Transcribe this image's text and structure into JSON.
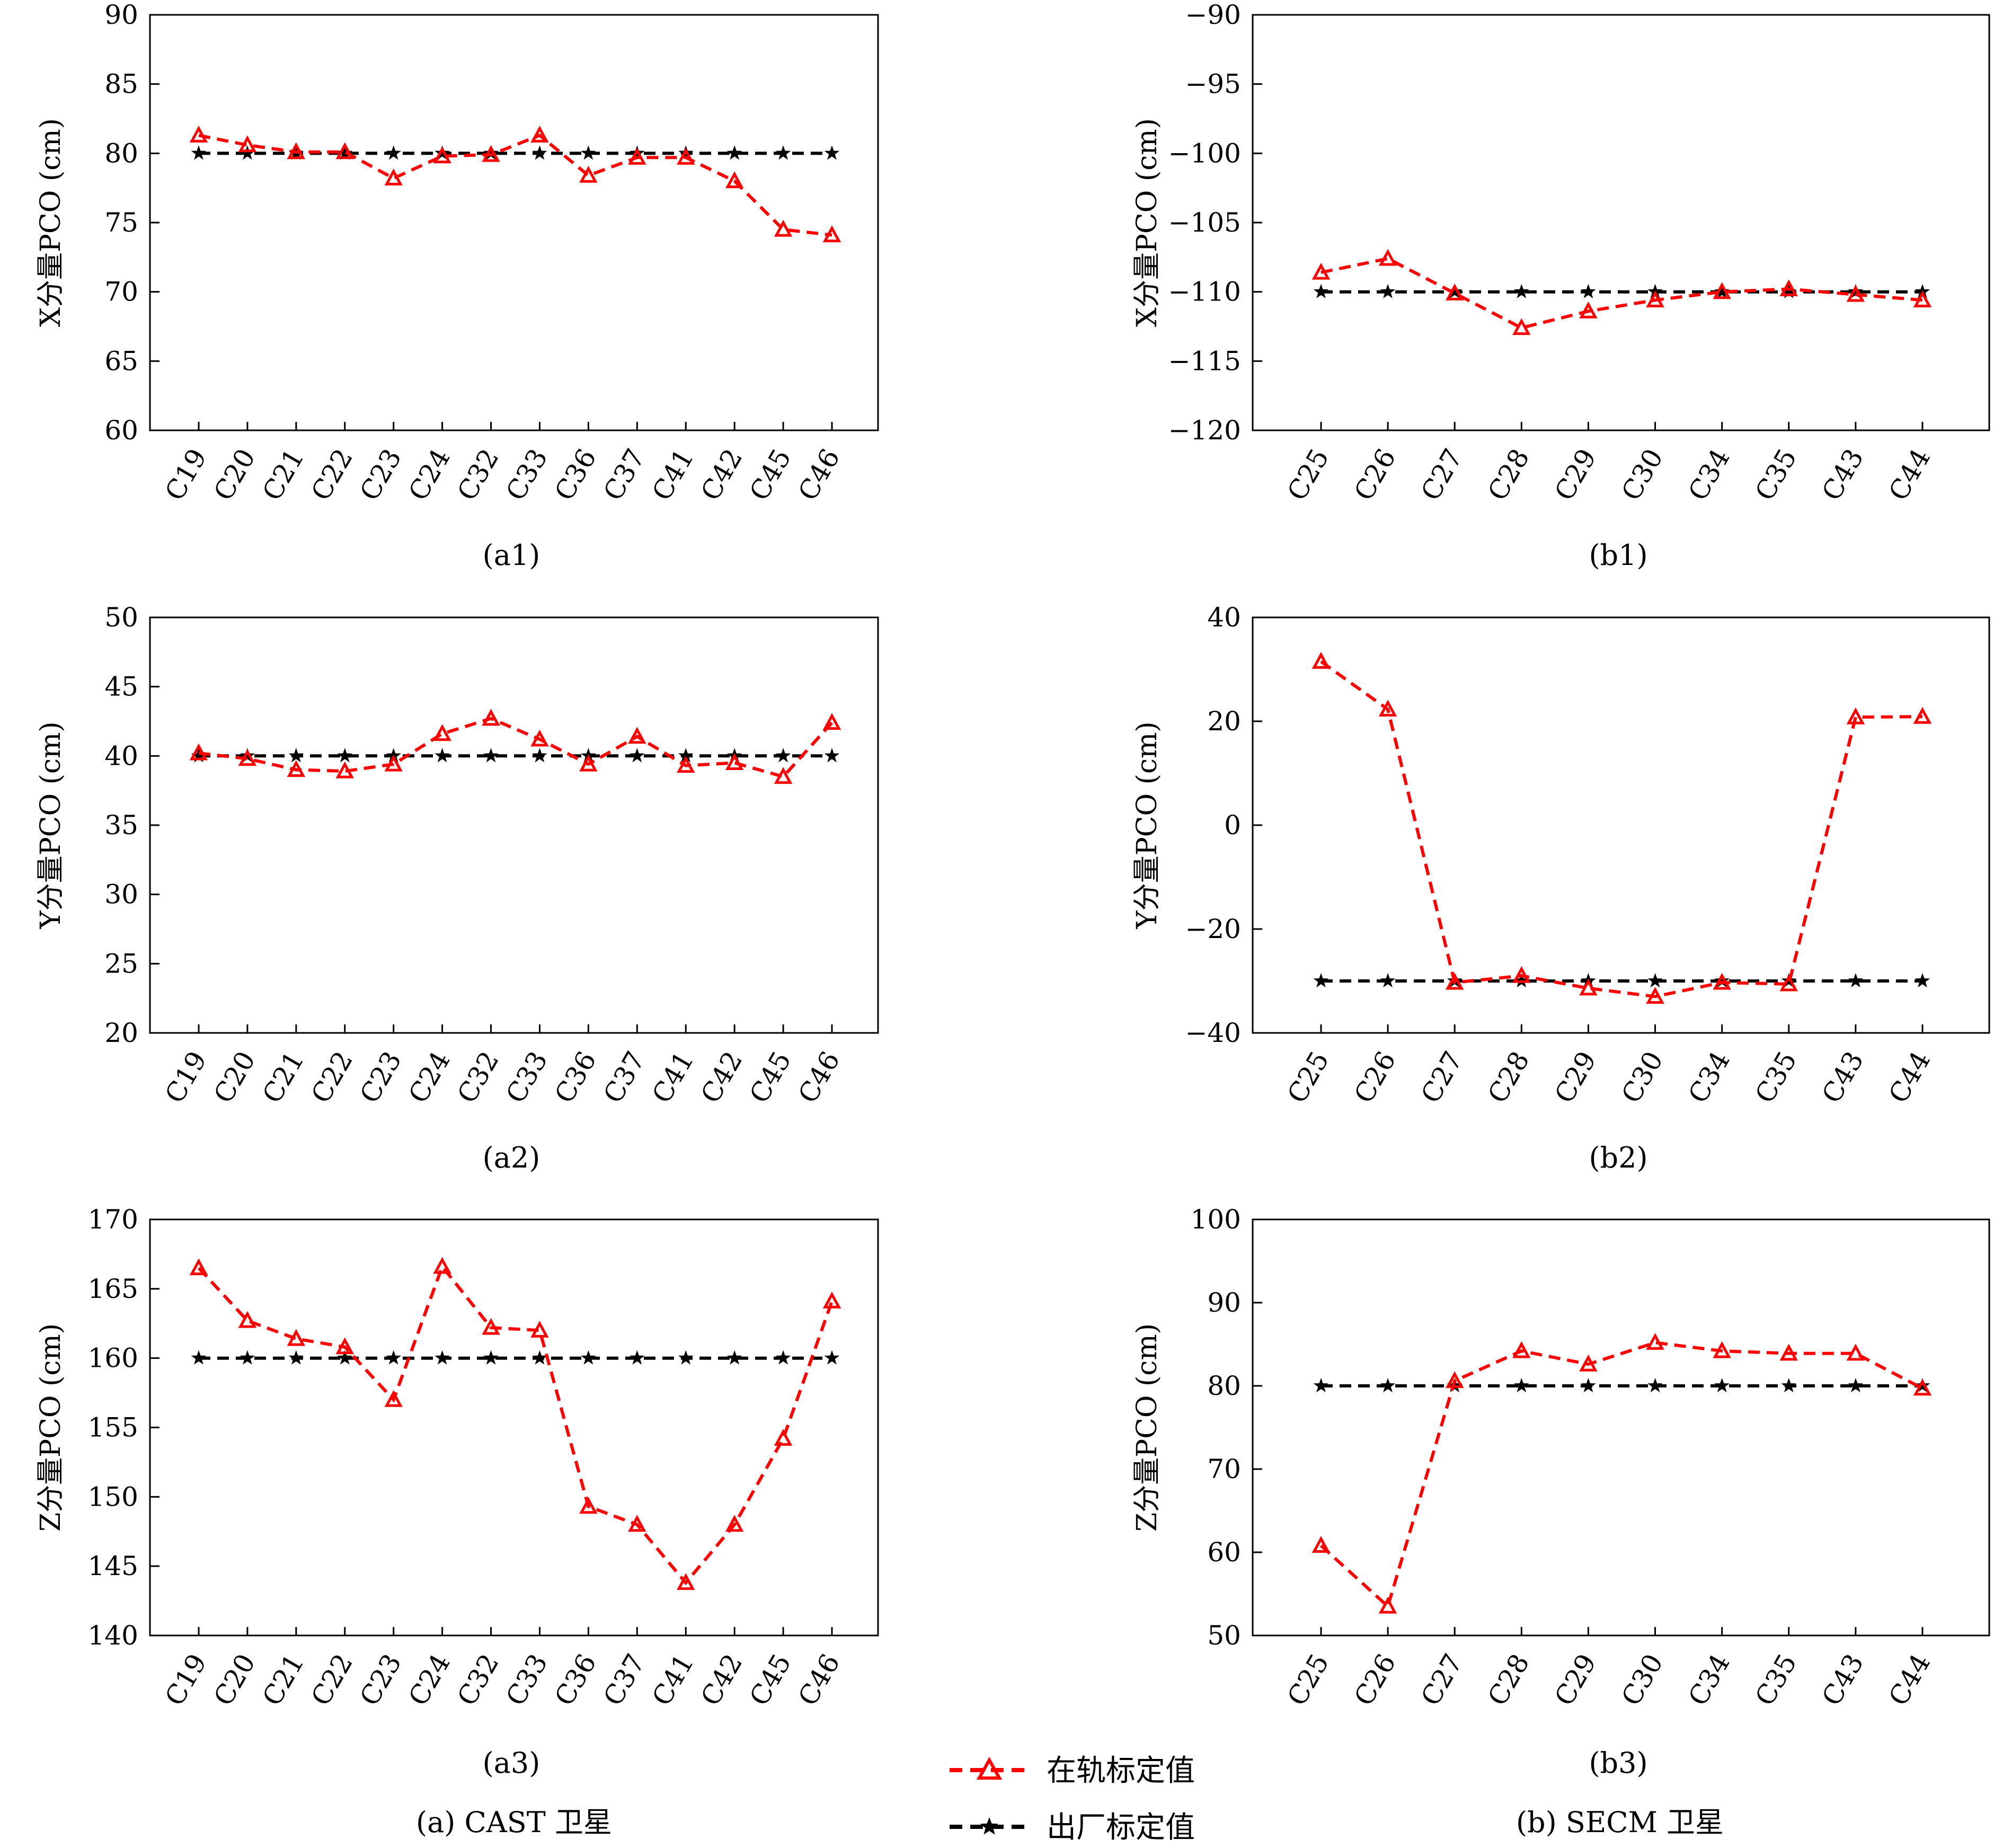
{
  "chart_data": [
    {
      "id": "a1",
      "type": "line",
      "caption": "(a1)",
      "ylabel": "X分量PCO (cm)",
      "categories": [
        "C19",
        "C20",
        "C21",
        "C22",
        "C23",
        "C24",
        "C32",
        "C33",
        "C36",
        "C37",
        "C41",
        "C42",
        "C45",
        "C46"
      ],
      "ylim": [
        60,
        90
      ],
      "yticks": [
        60,
        65,
        70,
        75,
        80,
        85,
        90
      ],
      "series": [
        {
          "name": "在轨标定值",
          "color": "#ff0000",
          "marker": "triangle",
          "values": [
            81.3,
            80.6,
            80.1,
            80.1,
            78.2,
            79.8,
            79.9,
            81.3,
            78.4,
            79.7,
            79.7,
            78.0,
            74.5,
            74.1
          ]
        },
        {
          "name": "出厂标定值",
          "color": "#000000",
          "marker": "star",
          "values": [
            80,
            80,
            80,
            80,
            80,
            80,
            80,
            80,
            80,
            80,
            80,
            80,
            80,
            80
          ]
        }
      ]
    },
    {
      "id": "b1",
      "type": "line",
      "caption": "(b1)",
      "ylabel": "X分量PCO (cm)",
      "categories": [
        "C25",
        "C26",
        "C27",
        "C28",
        "C29",
        "C30",
        "C34",
        "C35",
        "C43",
        "C44"
      ],
      "ylim": [
        -120,
        -90
      ],
      "yticks": [
        -120,
        -115,
        -110,
        -105,
        -100,
        -95,
        -90
      ],
      "series": [
        {
          "name": "在轨标定值",
          "color": "#ff0000",
          "marker": "triangle",
          "values": [
            -108.6,
            -107.6,
            -110.1,
            -112.6,
            -111.4,
            -110.6,
            -110.0,
            -109.8,
            -110.2,
            -110.6
          ]
        },
        {
          "name": "出厂标定值",
          "color": "#000000",
          "marker": "star",
          "values": [
            -110,
            -110,
            -110,
            -110,
            -110,
            -110,
            -110,
            -110,
            -110,
            -110
          ]
        }
      ]
    },
    {
      "id": "a2",
      "type": "line",
      "caption": "(a2)",
      "ylabel": "Y分量PCO (cm)",
      "categories": [
        "C19",
        "C20",
        "C21",
        "C22",
        "C23",
        "C24",
        "C32",
        "C33",
        "C36",
        "C37",
        "C41",
        "C42",
        "C45",
        "C46"
      ],
      "ylim": [
        20,
        50
      ],
      "yticks": [
        20,
        25,
        30,
        35,
        40,
        45,
        50
      ],
      "series": [
        {
          "name": "在轨标定值",
          "color": "#ff0000",
          "marker": "triangle",
          "values": [
            40.2,
            39.8,
            39.0,
            38.9,
            39.4,
            41.6,
            42.7,
            41.2,
            39.4,
            41.4,
            39.3,
            39.5,
            38.5,
            42.4
          ]
        },
        {
          "name": "出厂标定值",
          "color": "#000000",
          "marker": "star",
          "values": [
            40,
            40,
            40,
            40,
            40,
            40,
            40,
            40,
            40,
            40,
            40,
            40,
            40,
            40
          ]
        }
      ]
    },
    {
      "id": "b2",
      "type": "line",
      "caption": "(b2)",
      "ylabel": "Y分量PCO (cm)",
      "categories": [
        "C25",
        "C26",
        "C27",
        "C28",
        "C29",
        "C30",
        "C34",
        "C35",
        "C43",
        "C44"
      ],
      "ylim": [
        -40,
        40
      ],
      "yticks": [
        -40,
        -20,
        0,
        20,
        40
      ],
      "series": [
        {
          "name": "在轨标定值",
          "color": "#ff0000",
          "marker": "triangle",
          "values": [
            31.5,
            22.3,
            -30.3,
            -29.0,
            -31.4,
            -33.0,
            -30.3,
            -30.6,
            20.8,
            20.9
          ]
        },
        {
          "name": "出厂标定值",
          "color": "#000000",
          "marker": "star",
          "values": [
            -30,
            -30,
            -30,
            -30,
            -30,
            -30,
            -30,
            -30,
            -30,
            -30
          ]
        }
      ]
    },
    {
      "id": "a3",
      "type": "line",
      "caption": "(a3)",
      "ylabel": "Z分量PCO (cm)",
      "categories": [
        "C19",
        "C20",
        "C21",
        "C22",
        "C23",
        "C24",
        "C32",
        "C33",
        "C36",
        "C37",
        "C41",
        "C42",
        "C45",
        "C46"
      ],
      "ylim": [
        140,
        170
      ],
      "yticks": [
        140,
        145,
        150,
        155,
        160,
        165,
        170
      ],
      "series": [
        {
          "name": "在轨标定值",
          "color": "#ff0000",
          "marker": "triangle",
          "values": [
            166.5,
            162.7,
            161.4,
            160.8,
            157.0,
            166.6,
            162.2,
            162.0,
            149.3,
            148.0,
            143.8,
            148.0,
            154.2,
            164.1
          ]
        },
        {
          "name": "出厂标定值",
          "color": "#000000",
          "marker": "star",
          "values": [
            160,
            160,
            160,
            160,
            160,
            160,
            160,
            160,
            160,
            160,
            160,
            160,
            160,
            160
          ]
        }
      ]
    },
    {
      "id": "b3",
      "type": "line",
      "caption": "(b3)",
      "ylabel": "Z分量PCO (cm)",
      "categories": [
        "C25",
        "C26",
        "C27",
        "C28",
        "C29",
        "C30",
        "C34",
        "C35",
        "C43",
        "C44"
      ],
      "ylim": [
        50,
        100
      ],
      "yticks": [
        50,
        60,
        70,
        80,
        90,
        100
      ],
      "series": [
        {
          "name": "在轨标定值",
          "color": "#ff0000",
          "marker": "triangle",
          "values": [
            60.8,
            53.5,
            80.6,
            84.2,
            82.6,
            85.2,
            84.2,
            83.9,
            83.9,
            79.7
          ]
        },
        {
          "name": "出厂标定值",
          "color": "#000000",
          "marker": "star",
          "values": [
            80,
            80,
            80,
            80,
            80,
            80,
            80,
            80,
            80,
            80
          ]
        }
      ]
    }
  ],
  "legend": {
    "items": [
      {
        "label": "在轨标定值",
        "color": "#ff0000",
        "marker": "triangle"
      },
      {
        "label": "出厂标定值",
        "color": "#000000",
        "marker": "star"
      }
    ],
    "placement": "bottom-center"
  },
  "captions": {
    "left": "(a) CAST 卫星",
    "right": "(b) SECM 卫星"
  }
}
